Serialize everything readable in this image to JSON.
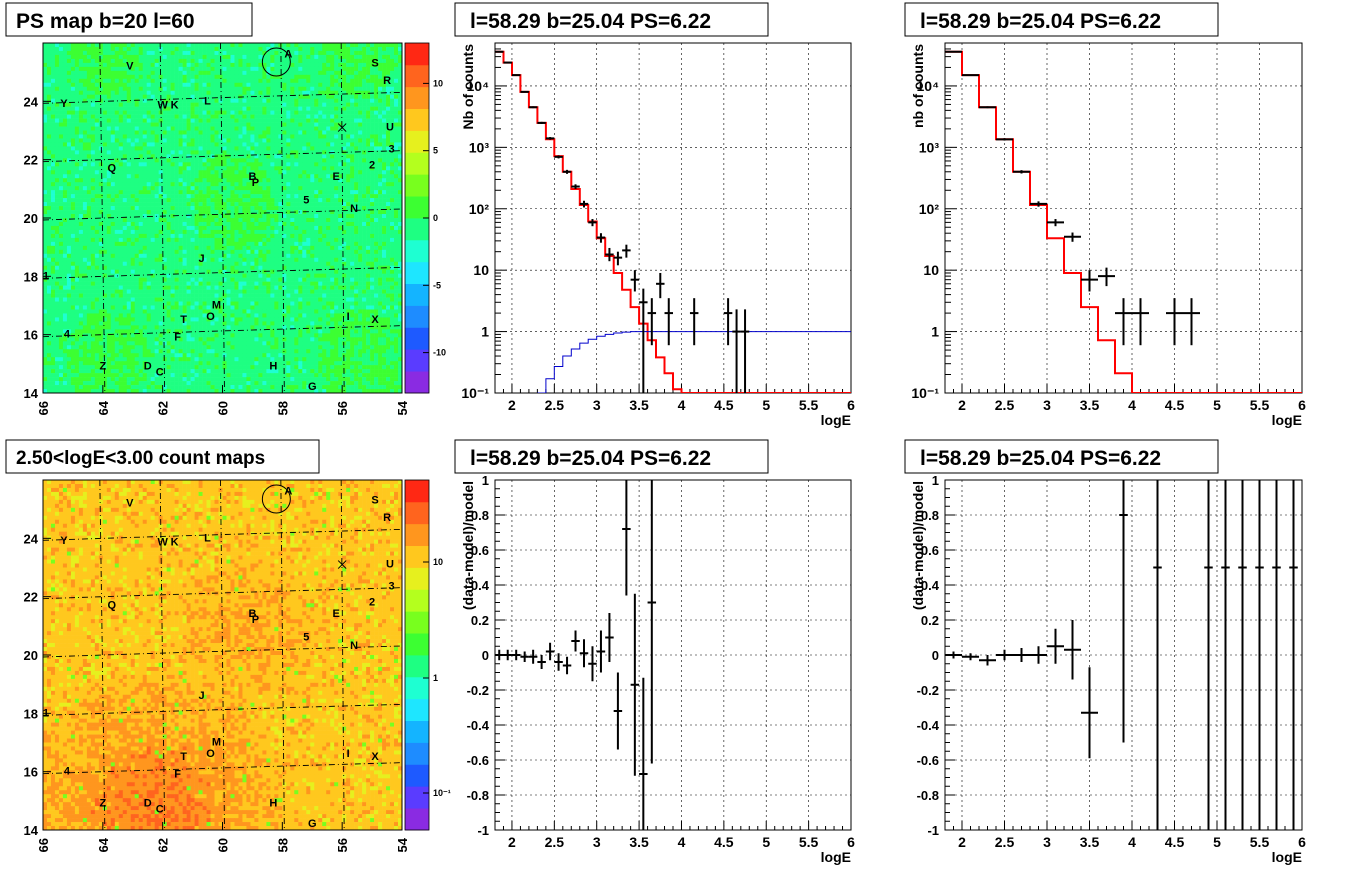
{
  "palette": [
    "#8a2be2",
    "#5a3cff",
    "#1e5aff",
    "#1e8cff",
    "#14b4ff",
    "#1ee6ff",
    "#1effd2",
    "#1eff82",
    "#3cff32",
    "#78ff1e",
    "#b4ff1e",
    "#e6f01e",
    "#ffc81e",
    "#ff961e",
    "#ff641e",
    "#ff2814"
  ],
  "chart_data": [
    {
      "id": "psmap",
      "type": "heatmap",
      "title": "PS map b=20 l=60",
      "x_ticks": [
        "66",
        "64",
        "62",
        "60",
        "58",
        "56",
        "54"
      ],
      "y_ticks": [
        "14",
        "16",
        "18",
        "20",
        "22",
        "24"
      ],
      "colorbar_ticks": [
        "10",
        "5",
        "0",
        "-5",
        "-10"
      ],
      "zlim": [
        -13,
        13
      ],
      "xlim": [
        66,
        54
      ],
      "ylim": [
        14,
        26
      ],
      "sources": [
        {
          "label": "A",
          "l": 57.8,
          "b": 25.5
        },
        {
          "label": "V",
          "l": 63.1,
          "b": 25.1
        },
        {
          "label": "S",
          "l": 54.9,
          "b": 25.2
        },
        {
          "label": "R",
          "l": 54.5,
          "b": 24.6
        },
        {
          "label": "Y",
          "l": 65.3,
          "b": 23.8
        },
        {
          "label": "W",
          "l": 62.0,
          "b": 23.75
        },
        {
          "label": "K",
          "l": 61.6,
          "b": 23.75
        },
        {
          "label": "L",
          "l": 60.5,
          "b": 23.9
        },
        {
          "label": "U",
          "l": 54.4,
          "b": 23.0
        },
        {
          "label": "3",
          "l": 54.35,
          "b": 22.25
        },
        {
          "label": "2",
          "l": 55.0,
          "b": 21.7
        },
        {
          "label": "Q",
          "l": 63.7,
          "b": 21.6
        },
        {
          "label": "B",
          "l": 59.0,
          "b": 21.3
        },
        {
          "label": "P",
          "l": 58.9,
          "b": 21.1
        },
        {
          "label": "E",
          "l": 56.2,
          "b": 21.3
        },
        {
          "label": "5",
          "l": 57.2,
          "b": 20.5
        },
        {
          "label": "N",
          "l": 55.6,
          "b": 20.2
        },
        {
          "label": "J",
          "l": 60.7,
          "b": 18.5
        },
        {
          "label": "1",
          "l": 65.9,
          "b": 17.9
        },
        {
          "label": "M",
          "l": 60.2,
          "b": 16.9
        },
        {
          "label": "O",
          "l": 60.4,
          "b": 16.5
        },
        {
          "label": "T",
          "l": 61.3,
          "b": 16.4
        },
        {
          "label": "I",
          "l": 55.8,
          "b": 16.5
        },
        {
          "label": "X",
          "l": 54.9,
          "b": 16.4
        },
        {
          "label": "4",
          "l": 65.2,
          "b": 15.9
        },
        {
          "label": "F",
          "l": 61.5,
          "b": 15.8
        },
        {
          "label": "Z",
          "l": 64.0,
          "b": 14.8
        },
        {
          "label": "D",
          "l": 62.5,
          "b": 14.8
        },
        {
          "label": "C",
          "l": 62.1,
          "b": 14.6
        },
        {
          "label": "H",
          "l": 58.3,
          "b": 14.8
        },
        {
          "label": "G",
          "l": 57.0,
          "b": 14.1
        }
      ],
      "circle": {
        "l": 58.2,
        "b": 25.35
      },
      "cross": {
        "l": 56.0,
        "b": 23.1
      }
    },
    {
      "id": "spec1",
      "type": "line",
      "title": "l=58.29 b=25.04 PS=6.22",
      "xlabel": "logE",
      "ylabel": "Nb of counts",
      "log_y": true,
      "xlim": [
        1.8,
        6
      ],
      "ylim": [
        0.1,
        50000
      ],
      "x_ticks": [
        "2",
        "2.5",
        "3",
        "3.5",
        "4",
        "4.5",
        "5",
        "5.5",
        "6"
      ],
      "y_ticks": [
        "10⁻¹",
        "1",
        "10",
        "10²",
        "10³",
        "10⁴"
      ],
      "model_step": {
        "edges": [
          1.8,
          1.9,
          2.0,
          2.1,
          2.2,
          2.3,
          2.4,
          2.5,
          2.6,
          2.7,
          2.8,
          2.9,
          3.0,
          3.1,
          3.2,
          3.3,
          3.4,
          3.5,
          3.6,
          3.7,
          3.8,
          3.9,
          4.0,
          4.1,
          4.2,
          4.3,
          4.4,
          4.5,
          6.0
        ],
        "values": [
          36000,
          24000,
          15000,
          8000,
          4500,
          2500,
          1350,
          720,
          400,
          210,
          115,
          62,
          33,
          17,
          9,
          4.8,
          2.5,
          1.35,
          0.72,
          0.38,
          0.21,
          0.115,
          0.1,
          0.1,
          0.1,
          0.1,
          0.1,
          0.1
        ]
      },
      "efficiency_curve": {
        "x": [
          2.3,
          2.4,
          2.5,
          2.6,
          2.7,
          2.8,
          2.9,
          3.0,
          3.1,
          3.2,
          3.3,
          3.4,
          3.5,
          6.0
        ],
        "y": [
          0.1,
          0.17,
          0.27,
          0.4,
          0.52,
          0.65,
          0.75,
          0.84,
          0.9,
          0.95,
          0.98,
          1.0,
          1.0,
          1.0
        ]
      },
      "data_points": [
        {
          "x": 1.85,
          "y": 36000,
          "yl": 35500,
          "yh": 36500
        },
        {
          "x": 1.95,
          "y": 24000,
          "yl": 23700,
          "yh": 24300
        },
        {
          "x": 2.05,
          "y": 15000,
          "yl": 14700,
          "yh": 15300
        },
        {
          "x": 2.15,
          "y": 8000,
          "yl": 7800,
          "yh": 8200
        },
        {
          "x": 2.25,
          "y": 4500,
          "yl": 4350,
          "yh": 4650
        },
        {
          "x": 2.35,
          "y": 2500,
          "yl": 2400,
          "yh": 2600
        },
        {
          "x": 2.45,
          "y": 1400,
          "yl": 1330,
          "yh": 1470
        },
        {
          "x": 2.55,
          "y": 700,
          "yl": 660,
          "yh": 740
        },
        {
          "x": 2.65,
          "y": 400,
          "yl": 370,
          "yh": 430
        },
        {
          "x": 2.75,
          "y": 230,
          "yl": 210,
          "yh": 250
        },
        {
          "x": 2.85,
          "y": 120,
          "yl": 105,
          "yh": 135
        },
        {
          "x": 2.95,
          "y": 60,
          "yl": 52,
          "yh": 68
        },
        {
          "x": 3.05,
          "y": 34,
          "yl": 28,
          "yh": 40
        },
        {
          "x": 3.15,
          "y": 18,
          "yl": 14,
          "yh": 23
        },
        {
          "x": 3.25,
          "y": 16,
          "yl": 12,
          "yh": 20,
          "xe": 0.05
        },
        {
          "x": 3.35,
          "y": 21,
          "yl": 16,
          "yh": 26,
          "xe": 0.05
        },
        {
          "x": 3.45,
          "y": 7,
          "yl": 4.5,
          "yh": 10,
          "xe": 0.05
        },
        {
          "x": 3.55,
          "y": 3,
          "yl": 0.1,
          "yh": 5
        },
        {
          "x": 3.65,
          "y": 2,
          "yl": 0.6,
          "yh": 3.5
        },
        {
          "x": 3.75,
          "y": 6,
          "yl": 3.5,
          "yh": 9,
          "xe": 0.05
        },
        {
          "x": 3.85,
          "y": 2,
          "yl": 0.6,
          "yh": 3.5
        },
        {
          "x": 4.15,
          "y": 2,
          "yl": 0.6,
          "yh": 3.5
        },
        {
          "x": 4.55,
          "y": 2,
          "yl": 0.6,
          "yh": 3.5
        },
        {
          "x": 4.65,
          "y": 1,
          "yl": 0.1,
          "yh": 2.3
        },
        {
          "x": 4.75,
          "y": 1,
          "yl": 0.1,
          "yh": 2.3
        }
      ]
    },
    {
      "id": "spec2",
      "type": "line",
      "title": "l=58.29 b=25.04 PS=6.22",
      "xlabel": "logE",
      "ylabel": "nb of counts",
      "log_y": true,
      "xlim": [
        1.8,
        6
      ],
      "ylim": [
        0.1,
        50000
      ],
      "x_ticks": [
        "2",
        "2.5",
        "3",
        "3.5",
        "4",
        "4.5",
        "5",
        "5.5",
        "6"
      ],
      "y_ticks": [
        "10⁻¹",
        "1",
        "10",
        "10²",
        "10³",
        "10⁴"
      ],
      "model_step": {
        "edges": [
          1.8,
          2.0,
          2.2,
          2.4,
          2.6,
          2.8,
          3.0,
          3.2,
          3.4,
          3.6,
          3.8,
          4.0,
          4.2,
          4.4,
          6.0
        ],
        "values": [
          36000,
          15000,
          4500,
          1350,
          400,
          115,
          33,
          9,
          2.5,
          0.72,
          0.21,
          0.1,
          0.1,
          0.1
        ]
      },
      "data_points": [
        {
          "x": 1.9,
          "y": 36000,
          "yl": 35600,
          "yh": 36400,
          "xe": 0.1
        },
        {
          "x": 2.1,
          "y": 15000,
          "yl": 14700,
          "yh": 15300,
          "xe": 0.1
        },
        {
          "x": 2.3,
          "y": 4500,
          "yl": 4350,
          "yh": 4650,
          "xe": 0.1
        },
        {
          "x": 2.5,
          "y": 1350,
          "yl": 1290,
          "yh": 1410,
          "xe": 0.1
        },
        {
          "x": 2.7,
          "y": 400,
          "yl": 375,
          "yh": 425,
          "xe": 0.1
        },
        {
          "x": 2.9,
          "y": 120,
          "yl": 108,
          "yh": 132,
          "xe": 0.1
        },
        {
          "x": 3.1,
          "y": 60,
          "yl": 52,
          "yh": 68,
          "xe": 0.1
        },
        {
          "x": 3.3,
          "y": 35,
          "yl": 29,
          "yh": 41,
          "xe": 0.1
        },
        {
          "x": 3.5,
          "y": 7,
          "yl": 4.5,
          "yh": 10,
          "xe": 0.1
        },
        {
          "x": 3.7,
          "y": 8,
          "yl": 5.5,
          "yh": 11,
          "xe": 0.1
        },
        {
          "x": 3.9,
          "y": 2,
          "yl": 0.6,
          "yh": 3.5,
          "xe": 0.1
        },
        {
          "x": 4.1,
          "y": 2,
          "yl": 0.6,
          "yh": 3.5,
          "xe": 0.1
        },
        {
          "x": 4.5,
          "y": 2,
          "yl": 0.6,
          "yh": 3.5,
          "xe": 0.1
        },
        {
          "x": 4.7,
          "y": 2,
          "yl": 0.6,
          "yh": 3.5,
          "xe": 0.1
        }
      ]
    },
    {
      "id": "cntmap",
      "type": "heatmap",
      "title": "2.50<logE<3.00 count maps",
      "x_ticks": [
        "66",
        "64",
        "62",
        "60",
        "58",
        "56",
        "54"
      ],
      "y_ticks": [
        "14",
        "16",
        "18",
        "20",
        "22",
        "24"
      ],
      "colorbar_ticks": [
        "10",
        "1",
        "10⁻¹"
      ],
      "log_z": true,
      "xlim": [
        66,
        54
      ],
      "ylim": [
        14,
        26
      ]
    },
    {
      "id": "res1",
      "type": "scatter",
      "title": "l=58.29 b=25.04 PS=6.22",
      "xlabel": "logE",
      "ylabel": "(data-model)/model",
      "xlim": [
        1.8,
        6
      ],
      "ylim": [
        -1,
        1
      ],
      "x_ticks": [
        "2",
        "2.5",
        "3",
        "3.5",
        "4",
        "4.5",
        "5",
        "5.5",
        "6"
      ],
      "y_ticks": [
        "-1",
        "-0.8",
        "-0.6",
        "-0.4",
        "-0.2",
        "0",
        "0.2",
        "0.4",
        "0.6",
        "0.8",
        "1"
      ],
      "points": [
        {
          "x": 1.85,
          "y": 0.0,
          "e": 0.03
        },
        {
          "x": 1.95,
          "y": 0.0,
          "e": 0.03
        },
        {
          "x": 2.05,
          "y": 0.0,
          "e": 0.03
        },
        {
          "x": 2.15,
          "y": -0.01,
          "e": 0.03
        },
        {
          "x": 2.25,
          "y": -0.01,
          "e": 0.04
        },
        {
          "x": 2.35,
          "y": -0.04,
          "e": 0.04
        },
        {
          "x": 2.45,
          "y": 0.02,
          "e": 0.05
        },
        {
          "x": 2.55,
          "y": -0.04,
          "e": 0.05
        },
        {
          "x": 2.65,
          "y": -0.06,
          "e": 0.05
        },
        {
          "x": 2.75,
          "y": 0.08,
          "e": 0.06
        },
        {
          "x": 2.85,
          "y": 0.01,
          "e": 0.08
        },
        {
          "x": 2.95,
          "y": -0.05,
          "e": 0.1
        },
        {
          "x": 3.05,
          "y": 0.02,
          "e": 0.12
        },
        {
          "x": 3.15,
          "y": 0.1,
          "e": 0.14
        },
        {
          "x": 3.25,
          "y": -0.32,
          "e": 0.22
        },
        {
          "x": 3.35,
          "y": 0.72,
          "e": 0.38
        },
        {
          "x": 3.45,
          "y": -0.17,
          "e": 0.52
        },
        {
          "x": 3.55,
          "y": -0.68,
          "e": 0.55
        },
        {
          "x": 3.65,
          "y": 0.3,
          "e": 0.92
        }
      ]
    },
    {
      "id": "res2",
      "type": "scatter",
      "title": "l=58.29 b=25.04 PS=6.22",
      "xlabel": "logE",
      "ylabel": "(data-model)/model",
      "xlim": [
        1.8,
        6
      ],
      "ylim": [
        -1,
        1
      ],
      "x_ticks": [
        "2",
        "2.5",
        "3",
        "3.5",
        "4",
        "4.5",
        "5",
        "5.5",
        "6"
      ],
      "y_ticks": [
        "-1",
        "-0.8",
        "-0.6",
        "-0.4",
        "-0.2",
        "0",
        "0.2",
        "0.4",
        "0.6",
        "0.8",
        "1"
      ],
      "points": [
        {
          "x": 1.9,
          "y": 0.0,
          "e": 0.02,
          "xe": 0.1
        },
        {
          "x": 2.1,
          "y": -0.01,
          "e": 0.02,
          "xe": 0.1
        },
        {
          "x": 2.3,
          "y": -0.03,
          "e": 0.03,
          "xe": 0.1
        },
        {
          "x": 2.5,
          "y": 0.0,
          "e": 0.03,
          "xe": 0.1
        },
        {
          "x": 2.7,
          "y": 0.0,
          "e": 0.04,
          "xe": 0.1
        },
        {
          "x": 2.9,
          "y": 0.0,
          "e": 0.05,
          "xe": 0.1
        },
        {
          "x": 3.1,
          "y": 0.05,
          "e": 0.1,
          "xe": 0.1
        },
        {
          "x": 3.3,
          "y": 0.03,
          "e": 0.17,
          "xe": 0.1
        },
        {
          "x": 3.5,
          "y": -0.33,
          "e": 0.26,
          "xe": 0.1
        },
        {
          "x": 3.9,
          "y": 0.8,
          "e": 1.3
        },
        {
          "x": 4.3,
          "y": 0.5,
          "e": 2
        },
        {
          "x": 4.9,
          "y": 0.5,
          "e": 2
        },
        {
          "x": 5.1,
          "y": 0.5,
          "e": 2
        },
        {
          "x": 5.3,
          "y": 0.5,
          "e": 2
        },
        {
          "x": 5.5,
          "y": 0.5,
          "e": 2
        },
        {
          "x": 5.7,
          "y": 0.5,
          "e": 2
        },
        {
          "x": 5.9,
          "y": 0.5,
          "e": 2
        }
      ]
    }
  ]
}
